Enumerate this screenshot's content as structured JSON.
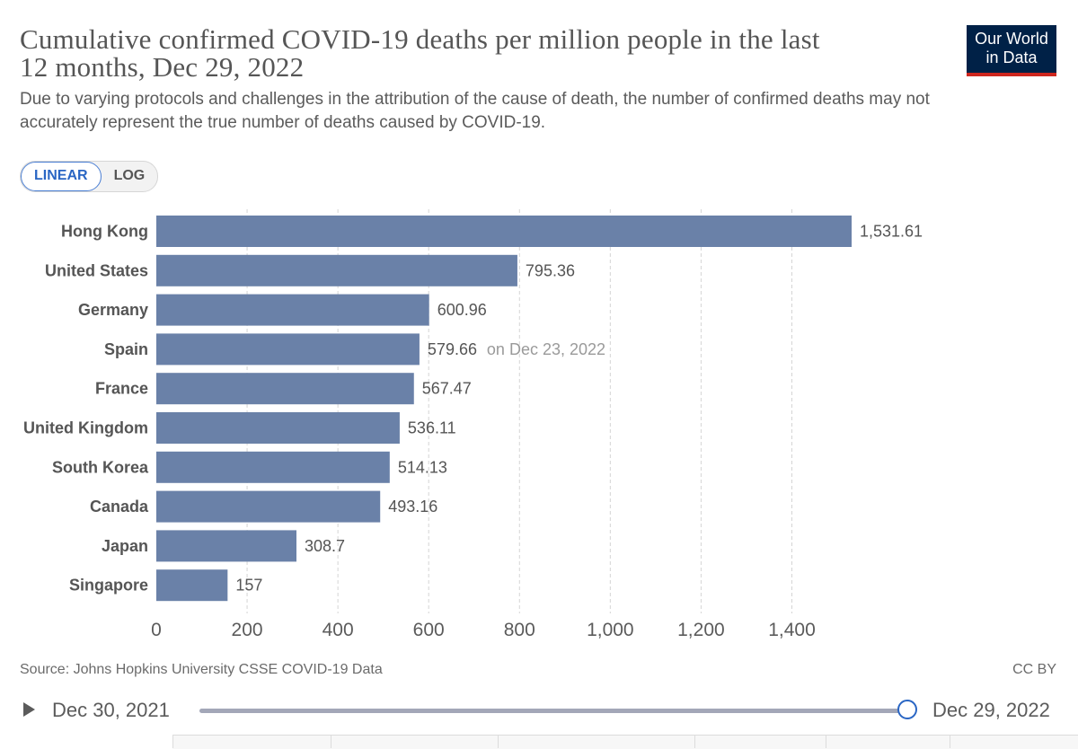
{
  "header": {
    "title_line1": "Cumulative confirmed COVID-19 deaths per million people in the last",
    "title_line2": "12 months, Dec 29, 2022",
    "subtitle_line1": "Due to varying protocols and challenges in the attribution of the cause of death, the number of confirmed deaths may not",
    "subtitle_line2": "accurately represent the true number of deaths caused by COVID-19.",
    "logo_line1": "Our World",
    "logo_line2": "in Data"
  },
  "controls": {
    "linear_label": "LINEAR",
    "log_label": "LOG"
  },
  "chart_data": {
    "type": "bar",
    "orientation": "horizontal",
    "title": "Cumulative confirmed COVID-19 deaths per million people in the last 12 months, Dec 29, 2022",
    "categories": [
      "Hong Kong",
      "United States",
      "Germany",
      "Spain",
      "France",
      "United Kingdom",
      "South Korea",
      "Canada",
      "Japan",
      "Singapore"
    ],
    "values": [
      1531.61,
      795.36,
      600.96,
      579.66,
      567.47,
      536.11,
      514.13,
      493.16,
      308.7,
      157
    ],
    "value_labels": [
      "1,531.61",
      "795.36",
      "600.96",
      "579.66",
      "567.47",
      "536.11",
      "514.13",
      "493.16",
      "308.7",
      "157"
    ],
    "annotations": [
      "",
      "",
      "",
      "on Dec 23, 2022",
      "",
      "",
      "",
      "",
      "",
      ""
    ],
    "xticks": [
      0,
      200,
      400,
      600,
      800,
      1000,
      1200,
      1400
    ],
    "xtick_labels": [
      "0",
      "200",
      "400",
      "600",
      "800",
      "1,000",
      "1,200",
      "1,400"
    ],
    "xlim": [
      0,
      1531.61
    ],
    "grid": true,
    "xlabel": "",
    "ylabel": "",
    "bar_color": "#6a81a8"
  },
  "footer": {
    "source": "Source: Johns Hopkins University CSSE COVID-19 Data",
    "license": "CC BY"
  },
  "timeline": {
    "start_date": "Dec 30, 2021",
    "end_date": "Dec 29, 2022"
  }
}
